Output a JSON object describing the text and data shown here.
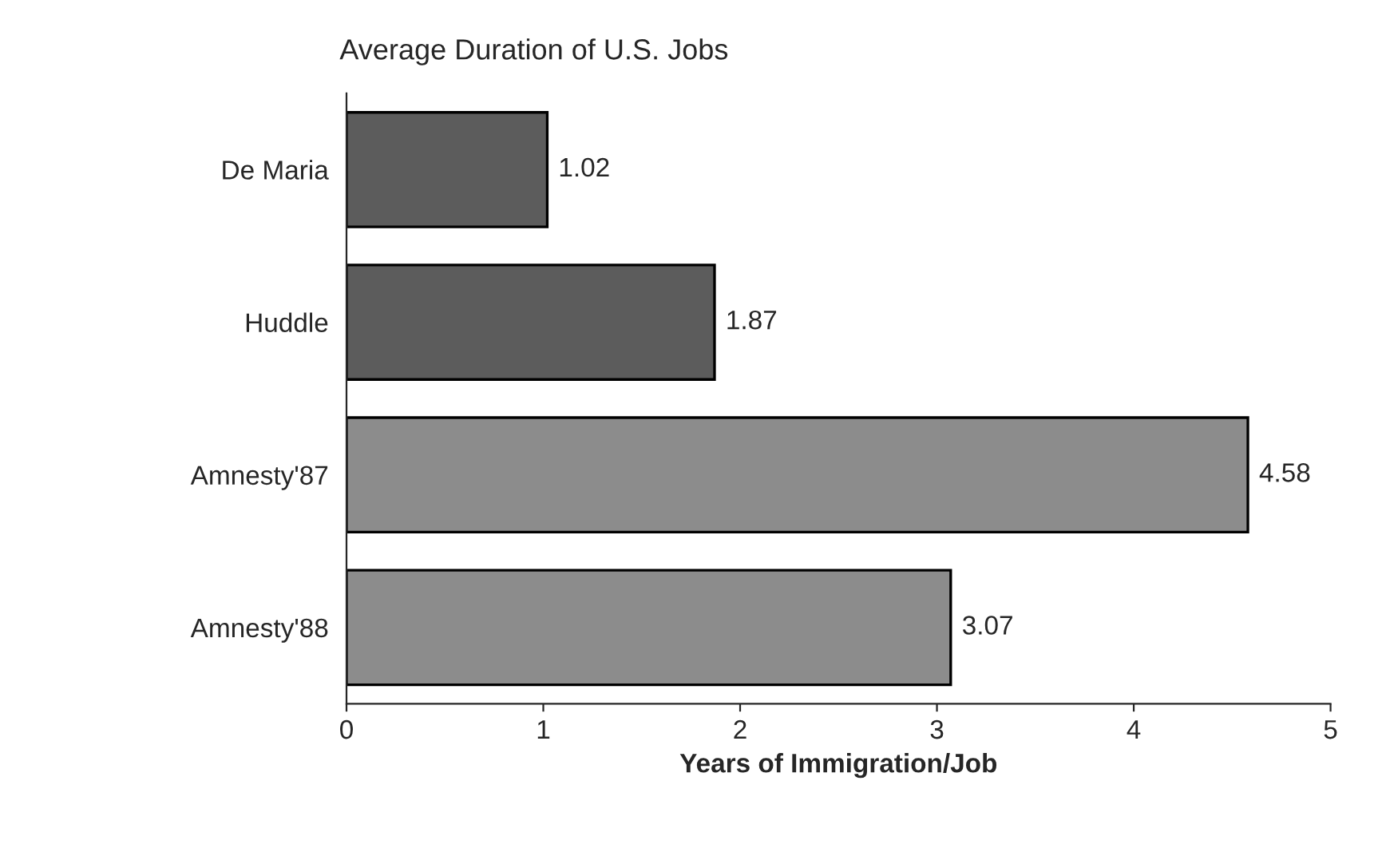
{
  "chart_data": {
    "type": "bar",
    "orientation": "horizontal",
    "title": "Average Duration of U.S. Jobs",
    "xlabel": "Years of Immigration/Job",
    "categories": [
      "De Maria",
      "Huddle",
      "Amnesty'87",
      "Amnesty'88"
    ],
    "values": [
      1.02,
      1.87,
      4.58,
      3.07
    ],
    "colors": [
      "#5c5c5c",
      "#5c5c5c",
      "#8c8c8c",
      "#8c8c8c"
    ],
    "xlim": [
      0,
      5
    ],
    "xticks": [
      0,
      1,
      2,
      3,
      4,
      5
    ],
    "data_labels": true,
    "grid": false,
    "legend": false
  }
}
